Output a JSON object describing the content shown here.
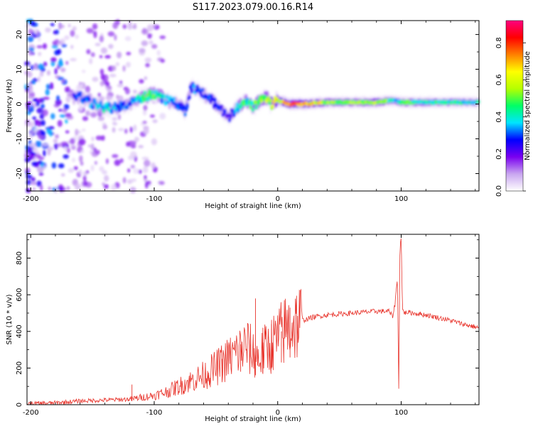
{
  "figure": {
    "title": "S117.2023.079.00.16.R14"
  },
  "chart_data": [
    {
      "type": "heatmap",
      "xlabel": "Height of straight line (km)",
      "ylabel": "Frequency (Hz)",
      "xlim": [
        -203,
        163
      ],
      "ylim": [
        -25,
        24
      ],
      "x_ticks": [
        -200,
        -100,
        0,
        100
      ],
      "x_tick_labels": [
        "-200",
        "-100",
        "0",
        "100"
      ],
      "y_ticks": [
        20,
        10,
        0,
        -10,
        -20
      ],
      "y_tick_labels": [
        "20",
        "10",
        "0",
        "-10",
        "-20"
      ],
      "colorbar": {
        "label": "Normalized spectral amplitude",
        "range": [
          0,
          0.92
        ],
        "ticks": [
          0.0,
          0.2,
          0.4,
          0.6,
          0.8
        ],
        "tick_labels": [
          "0.0",
          "0.2",
          "0.4",
          "0.6",
          "0.8"
        ],
        "colormap": [
          "#ffffff",
          "#c9a6f0",
          "#7a00f0",
          "#0000ff",
          "#00e5ff",
          "#00ff66",
          "#b5ff00",
          "#ffff00",
          "#ff8000",
          "#ff0000",
          "#ff007f"
        ]
      },
      "ridge": {
        "x": [
          -160,
          -150,
          -140,
          -130,
          -120,
          -110,
          -100,
          -90,
          -80,
          -75,
          -70,
          -60,
          -50,
          -40,
          -35,
          -30,
          -25,
          -20,
          -15,
          -10,
          -5,
          0,
          10,
          20,
          40,
          60,
          80,
          90,
          95,
          100,
          120,
          140,
          163
        ],
        "frequency": [
          2,
          0,
          -1,
          -1,
          0,
          2,
          3,
          1,
          0,
          -2,
          5,
          3,
          0,
          -4,
          -2,
          0,
          1,
          -1,
          1,
          2,
          0,
          1,
          0,
          0,
          0.5,
          0.5,
          0.5,
          1,
          1,
          0.5,
          0.5,
          0.5,
          0.5
        ],
        "amplitude": [
          0.3,
          0.35,
          0.4,
          0.35,
          0.3,
          0.45,
          0.5,
          0.35,
          0.3,
          0.3,
          0.35,
          0.3,
          0.3,
          0.25,
          0.3,
          0.5,
          0.45,
          0.5,
          0.55,
          0.6,
          0.6,
          0.65,
          0.85,
          0.8,
          0.55,
          0.55,
          0.6,
          0.5,
          0.4,
          0.5,
          0.45,
          0.45,
          0.4
        ]
      }
    },
    {
      "type": "line",
      "xlabel": "Height of straight line (km)",
      "ylabel": "SNR (10 * v/v)",
      "xlim": [
        -203,
        163
      ],
      "ylim": [
        0,
        930
      ],
      "x_ticks": [
        -200,
        -100,
        0,
        100
      ],
      "x_tick_labels": [
        "-200",
        "-100",
        "0",
        "100"
      ],
      "y_ticks": [
        0,
        200,
        400,
        600,
        800
      ],
      "y_tick_labels": [
        "0",
        "200",
        "400",
        "600",
        "800"
      ],
      "color": "#e8352d",
      "series": [
        {
          "x": [
            -203,
            -180,
            -160,
            -140,
            -120,
            -110,
            -100,
            -90,
            -80,
            -70,
            -60,
            -50,
            -40,
            -30,
            -25,
            -20,
            -15,
            -10,
            -5,
            0,
            5,
            10,
            20,
            30,
            40,
            50,
            60,
            70,
            80,
            90,
            93,
            95,
            97,
            98,
            99,
            100,
            101,
            103,
            105,
            110,
            120,
            130,
            140,
            150,
            163
          ],
          "values": [
            5,
            10,
            20,
            25,
            30,
            40,
            50,
            70,
            100,
            130,
            160,
            200,
            250,
            300,
            320,
            280,
            250,
            300,
            330,
            360,
            400,
            430,
            460,
            480,
            490,
            495,
            500,
            505,
            510,
            510,
            480,
            550,
            700,
            60,
            850,
            930,
            520,
            500,
            505,
            500,
            490,
            475,
            460,
            440,
            420
          ]
        }
      ],
      "spikes": [
        {
          "x": -118,
          "value": 110
        },
        {
          "x": -45,
          "value": 250
        },
        {
          "x": -30,
          "value": 330
        },
        {
          "x": -18,
          "value": 580
        },
        {
          "x": -12,
          "value": 420
        },
        {
          "x": -5,
          "value": 440
        },
        {
          "x": 3,
          "value": 400
        },
        {
          "x": 10,
          "value": 530
        }
      ]
    }
  ]
}
